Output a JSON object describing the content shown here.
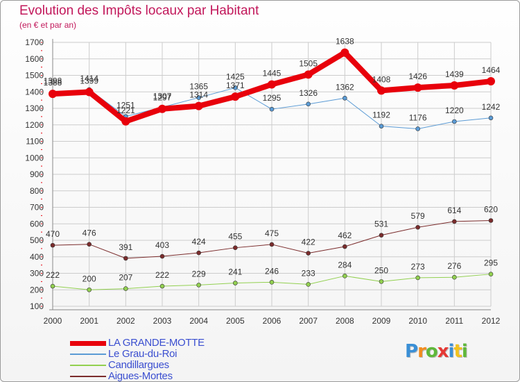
{
  "header": {
    "title": "Evolution des Impôts locaux par Habitant",
    "subtitle": "(en € et par an)"
  },
  "logo": {
    "text": "Proxiti"
  },
  "colors": {
    "title": "#c2185b",
    "legend_text": "#3b4fd0",
    "grid": "#cccccc",
    "axis_text": "#333333"
  },
  "chart_data": {
    "type": "line",
    "x": [
      "2000",
      "2001",
      "2002",
      "2003",
      "2004",
      "2005",
      "2006",
      "2007",
      "2008",
      "2009",
      "2010",
      "2011",
      "2012"
    ],
    "ylim": [
      100,
      1700
    ],
    "yticks": [
      100,
      200,
      300,
      400,
      500,
      600,
      700,
      800,
      900,
      1000,
      1100,
      1200,
      1300,
      1400,
      1500,
      1600,
      1700
    ],
    "grid": true,
    "legend_position": "bottom-left",
    "series": [
      {
        "name": "LA GRANDE-MOTTE",
        "color": "#e8000b",
        "values": [
          1388,
          1399,
          1221,
          1297,
          1314,
          1371,
          1445,
          1505,
          1638,
          1408,
          1426,
          1439,
          1464
        ]
      },
      {
        "name": "Le Grau-du-Roi",
        "color": "#5b9bd5",
        "values": [
          1398,
          1414,
          1251,
          1307,
          1365,
          1425,
          1295,
          1326,
          1362,
          1192,
          1176,
          1220,
          1242
        ]
      },
      {
        "name": "Candillargues",
        "color": "#92d050",
        "values": [
          222,
          200,
          207,
          222,
          229,
          241,
          246,
          233,
          284,
          250,
          273,
          276,
          295
        ]
      },
      {
        "name": "Aigues-Mortes",
        "color": "#7b2c2c",
        "values": [
          470,
          476,
          391,
          403,
          424,
          455,
          475,
          422,
          462,
          531,
          579,
          614,
          620
        ]
      }
    ]
  }
}
